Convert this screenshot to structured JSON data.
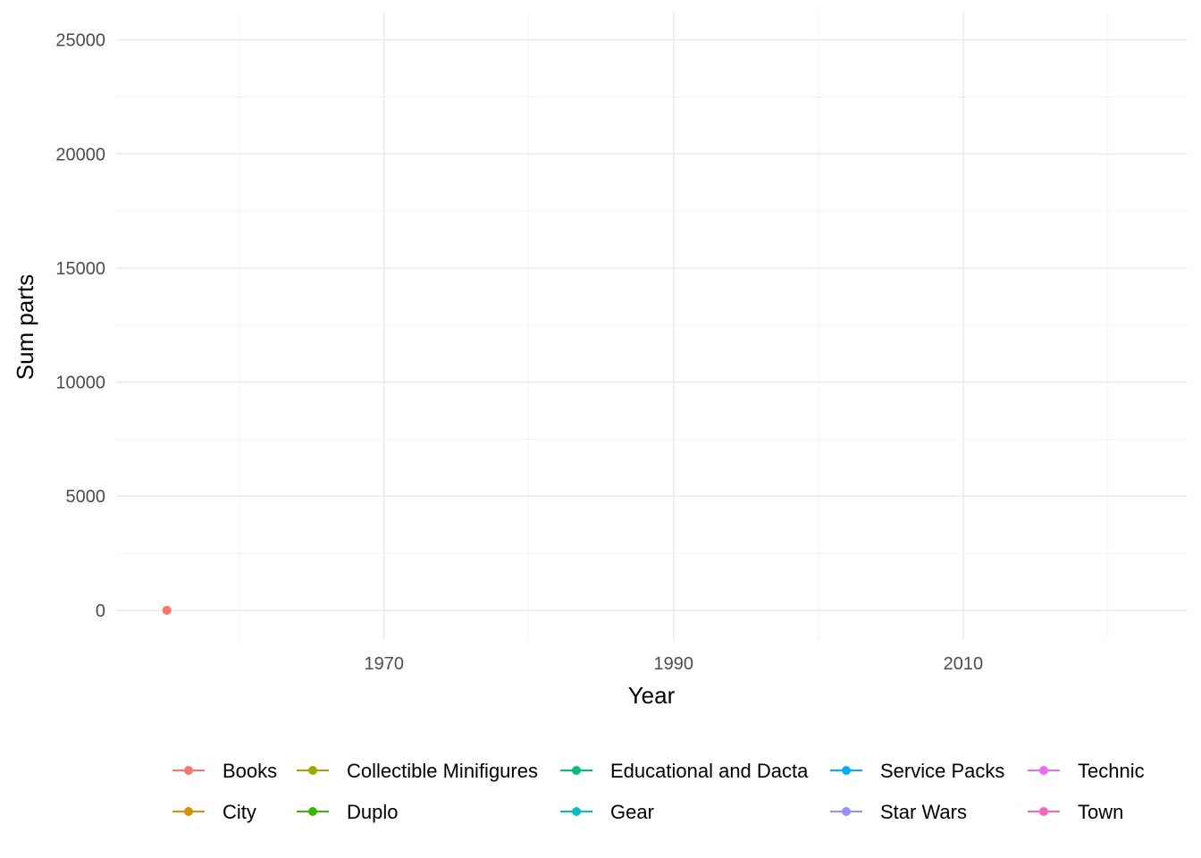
{
  "chart_data": {
    "type": "line",
    "title": "",
    "xlabel": "Year",
    "ylabel": "Sum parts",
    "xlim": [
      1951.5,
      2025.5
    ],
    "ylim": [
      -1300,
      26200
    ],
    "x_ticks": [
      1970,
      1990,
      2010
    ],
    "x_minor_ticks": [
      1960,
      1980,
      2000,
      2020
    ],
    "y_ticks": [
      0,
      5000,
      10000,
      15000,
      20000,
      25000
    ],
    "y_minor_ticks": [
      2500,
      7500,
      12500,
      17500,
      22500
    ],
    "grid": true,
    "legend_position": "bottom",
    "series": [
      {
        "name": "Books",
        "color": "#F8766D",
        "points": [
          {
            "x": 1955,
            "y": 0
          }
        ]
      },
      {
        "name": "City",
        "color": "#D89000",
        "points": []
      },
      {
        "name": "Collectible Minifigures",
        "color": "#A3A500",
        "points": []
      },
      {
        "name": "Duplo",
        "color": "#39B600",
        "points": []
      },
      {
        "name": "Educational and Dacta",
        "color": "#00BF7D",
        "points": []
      },
      {
        "name": "Gear",
        "color": "#00BFC4",
        "points": []
      },
      {
        "name": "Service Packs",
        "color": "#00B0F6",
        "points": []
      },
      {
        "name": "Star Wars",
        "color": "#9590FF",
        "points": []
      },
      {
        "name": "Technic",
        "color": "#E76BF3",
        "points": []
      },
      {
        "name": "Town",
        "color": "#FF62BC",
        "points": []
      }
    ]
  }
}
